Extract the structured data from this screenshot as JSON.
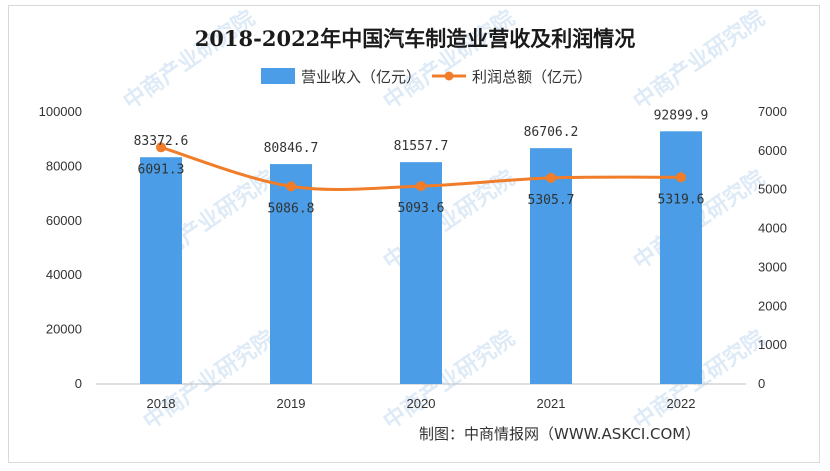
{
  "chart_data": {
    "type": "bar+line",
    "title": "2018-2022年中国汽车制造业营收及利润情况",
    "categories": [
      "2018",
      "2019",
      "2020",
      "2021",
      "2022"
    ],
    "series": [
      {
        "name": "营业收入（亿元）",
        "type": "bar",
        "axis": "left",
        "color": "#4a9de6",
        "values": [
          83372.6,
          80846.7,
          81557.7,
          86706.2,
          92899.9
        ],
        "labels": [
          "83372.6",
          "80846.7",
          "81557.7",
          "86706.2",
          "92899.9"
        ]
      },
      {
        "name": "利润总额（亿元）",
        "type": "line",
        "axis": "right",
        "color": "#f07d2a",
        "values": [
          6091.3,
          5086.8,
          5093.6,
          5305.7,
          5319.6
        ],
        "labels": [
          "6091.3",
          "5086.8",
          "5093.6",
          "5305.7",
          "5319.6"
        ]
      }
    ],
    "y_left": {
      "range": [
        0,
        100000
      ],
      "ticks": [
        "0",
        "20000",
        "40000",
        "60000",
        "80000",
        "100000"
      ]
    },
    "y_right": {
      "range": [
        0,
        7000
      ],
      "ticks": [
        "0",
        "1000",
        "2000",
        "3000",
        "4000",
        "5000",
        "6000",
        "7000"
      ]
    },
    "legend_position": "top-center",
    "grid": false
  },
  "source": "制图：中商情报网（WWW.ASKCI.COM）",
  "watermark": "中商产业研究院"
}
